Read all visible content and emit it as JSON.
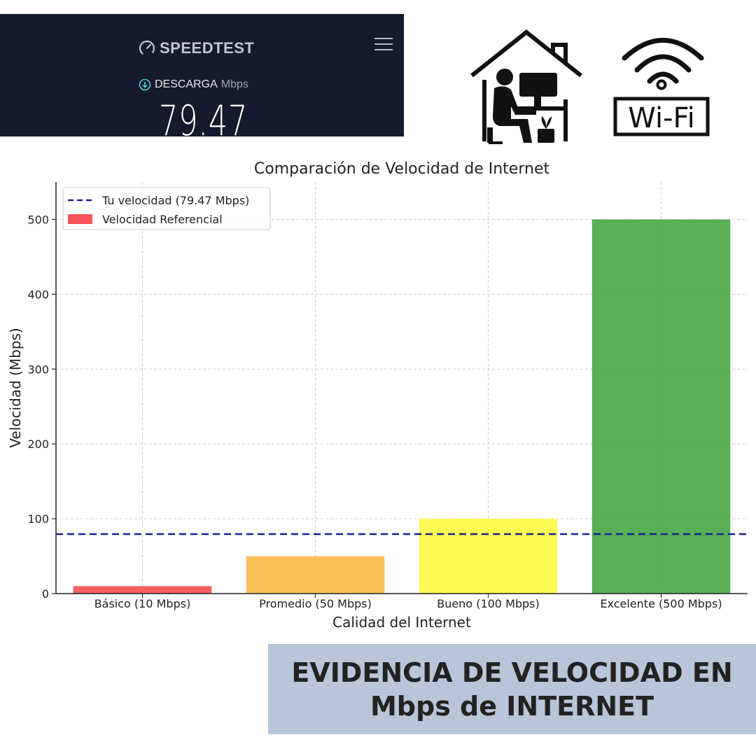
{
  "speedtest": {
    "brand": "SPEEDTEST",
    "metric_label": "DESCARGA",
    "unit": "Mbps",
    "value": "79.47"
  },
  "icons": {
    "home": "home-office-icon",
    "wifi_text": "Wi-Fi"
  },
  "chart_data": {
    "type": "bar",
    "title": "Comparación de Velocidad de Internet",
    "xlabel": "Calidad del Internet",
    "ylabel": "Velocidad (Mbps)",
    "categories": [
      "Básico (10 Mbps)",
      "Promedio (50 Mbps)",
      "Bueno (100 Mbps)",
      "Excelente (500 Mbps)"
    ],
    "values": [
      10,
      50,
      100,
      500
    ],
    "colors": [
      "#f5545b",
      "#fcbf50",
      "#fbfb4b",
      "#4eab4e"
    ],
    "ylim": [
      0,
      550
    ],
    "yticks": [
      0,
      100,
      200,
      300,
      400,
      500
    ],
    "reference_line": {
      "value": 79.47,
      "label": "Tu velocidad (79.47 Mbps)",
      "color": "#1a1f8c",
      "style": "dashed"
    },
    "legend": {
      "placement": "top-left",
      "entries": [
        {
          "label": "Tu velocidad (79.47 Mbps)",
          "kind": "dashed-line",
          "color": "#1a1f8c"
        },
        {
          "label": "Velocidad Referencial",
          "kind": "patch",
          "color": "#f5545b"
        }
      ]
    },
    "grid": true
  },
  "banner": {
    "line1": "EVIDENCIA DE VELOCIDAD EN",
    "line2": "Mbps de INTERNET"
  }
}
